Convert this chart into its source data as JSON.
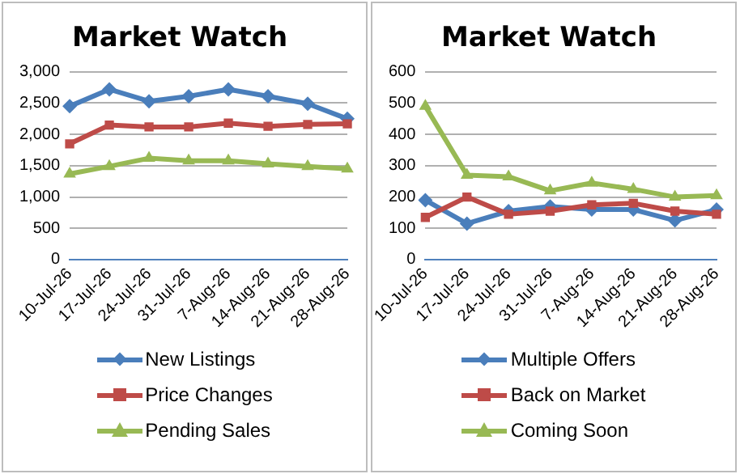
{
  "chart_data": [
    {
      "type": "line",
      "title": "Market Watch",
      "categories": [
        "10-Jul-26",
        "17-Jul-26",
        "24-Jul-26",
        "31-Jul-26",
        "7-Aug-26",
        "14-Aug-26",
        "21-Aug-26",
        "28-Aug-26"
      ],
      "series": [
        {
          "name": "New Listings",
          "color": "#4a7ebb",
          "marker": "diamond",
          "values": [
            2450,
            2720,
            2530,
            2610,
            2720,
            2610,
            2490,
            2250
          ]
        },
        {
          "name": "Price Changes",
          "color": "#be4b48",
          "marker": "square",
          "values": [
            1850,
            2150,
            2120,
            2120,
            2180,
            2130,
            2160,
            2170
          ]
        },
        {
          "name": "Pending Sales",
          "color": "#98b954",
          "marker": "triangle",
          "values": [
            1370,
            1490,
            1620,
            1580,
            1580,
            1530,
            1490,
            1450
          ]
        }
      ],
      "ylim": [
        0,
        3000
      ],
      "yticks": [
        {
          "value": 0,
          "label": "0"
        },
        {
          "value": 500,
          "label": "500"
        },
        {
          "value": 1000,
          "label": "1,000"
        },
        {
          "value": 1500,
          "label": "1,500"
        },
        {
          "value": 2000,
          "label": "2,000"
        },
        {
          "value": 2500,
          "label": "2,500"
        },
        {
          "value": 3000,
          "label": "3,000"
        }
      ],
      "grid": "y",
      "legend": "bottom"
    },
    {
      "type": "line",
      "title": "Market Watch",
      "categories": [
        "10-Jul-26",
        "17-Jul-26",
        "24-Jul-26",
        "31-Jul-26",
        "7-Aug-26",
        "14-Aug-26",
        "21-Aug-26",
        "28-Aug-26"
      ],
      "series": [
        {
          "name": "Multiple Offers",
          "color": "#4a7ebb",
          "marker": "diamond",
          "values": [
            190,
            115,
            155,
            170,
            160,
            160,
            125,
            160
          ]
        },
        {
          "name": "Back on Market",
          "color": "#be4b48",
          "marker": "square",
          "values": [
            135,
            200,
            145,
            155,
            175,
            180,
            155,
            145
          ]
        },
        {
          "name": "Coming Soon",
          "color": "#98b954",
          "marker": "triangle",
          "values": [
            490,
            270,
            265,
            220,
            245,
            225,
            200,
            205
          ]
        }
      ],
      "ylim": [
        0,
        600
      ],
      "yticks": [
        0,
        100,
        200,
        300,
        400,
        500,
        600
      ],
      "grid": "y",
      "legend": "bottom"
    }
  ]
}
